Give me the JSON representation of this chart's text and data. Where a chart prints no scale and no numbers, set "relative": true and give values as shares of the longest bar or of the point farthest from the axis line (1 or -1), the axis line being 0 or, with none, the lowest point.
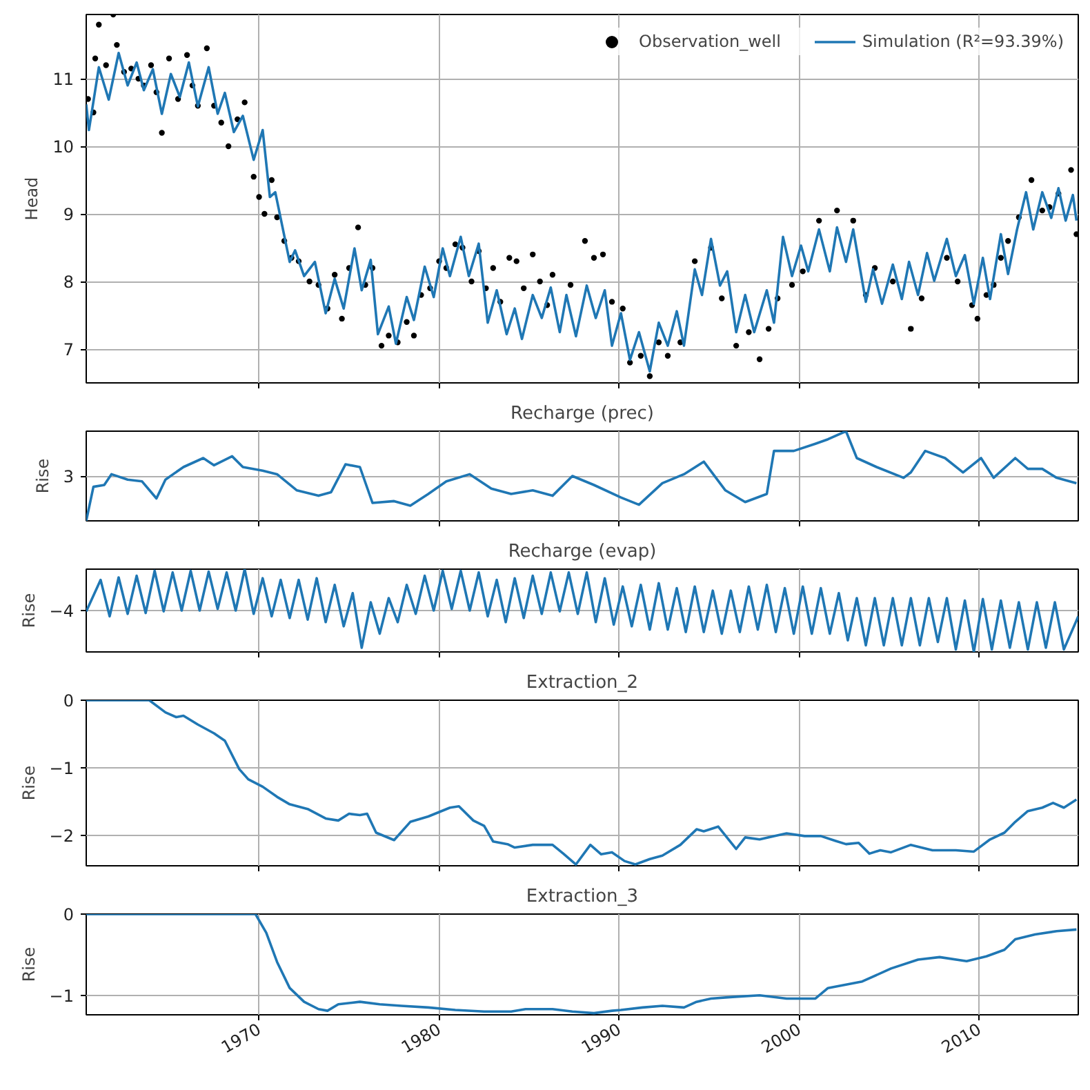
{
  "chart_data": [
    {
      "type": "line",
      "ylabel": "Head",
      "xlim": [
        1960.4,
        2015.5
      ],
      "xticks": [
        1970,
        1980,
        1990,
        2000,
        2010
      ],
      "ylim": [
        6.5,
        11.95
      ],
      "yticks": [
        7,
        8,
        9,
        10,
        11
      ],
      "tick_labels": "y",
      "grid": true,
      "legend": "top right",
      "series": [
        {
          "name": "Observation_well",
          "type": "scatter",
          "marker": "circle",
          "color": "#000000",
          "x": [
            1960.5,
            1960.8,
            1960.9,
            1961.1,
            1961.5,
            1961.9,
            1962.1,
            1962.5,
            1962.9,
            1963.3,
            1963.6,
            1964.0,
            1964.3,
            1964.6,
            1965.0,
            1965.5,
            1966.0,
            1966.3,
            1966.6,
            1967.1,
            1967.5,
            1967.9,
            1968.3,
            1968.8,
            1969.2,
            1969.7,
            1970.0,
            1970.3,
            1970.7,
            1971.0,
            1971.4,
            1971.8,
            1972.2,
            1972.8,
            1973.3,
            1973.8,
            1974.2,
            1974.6,
            1975.0,
            1975.5,
            1975.9,
            1976.3,
            1976.8,
            1977.2,
            1977.7,
            1978.2,
            1978.6,
            1979.0,
            1979.5,
            1980.0,
            1980.4,
            1980.9,
            1981.3,
            1981.8,
            1982.2,
            1982.6,
            1983.0,
            1983.4,
            1983.9,
            1984.3,
            1984.7,
            1985.2,
            1985.6,
            1986.0,
            1986.3,
            1987.3,
            1988.1,
            1988.6,
            1989.1,
            1989.6,
            1990.2,
            1990.6,
            1991.2,
            1991.7,
            1992.2,
            1992.7,
            1993.4,
            1994.2,
            1995.1,
            1995.7,
            1996.5,
            1997.2,
            1997.8,
            1998.3,
            1998.8,
            1999.6,
            2000.2,
            2001.1,
            2002.1,
            2003.0,
            2003.7,
            2004.2,
            2005.2,
            2006.2,
            2006.8,
            2008.2,
            2008.8,
            2009.6,
            2009.9,
            2010.4,
            2010.8,
            2011.2,
            2011.6,
            2012.2,
            2012.9,
            2013.5,
            2013.9,
            2014.4,
            2015.1,
            2015.4
          ],
          "values": [
            10.7,
            10.5,
            11.3,
            11.8,
            11.2,
            11.95,
            11.5,
            11.1,
            11.15,
            11.0,
            10.9,
            11.2,
            10.8,
            10.2,
            11.3,
            10.7,
            11.35,
            10.9,
            10.6,
            11.45,
            10.6,
            10.35,
            10.0,
            10.4,
            10.65,
            9.55,
            9.25,
            9.0,
            9.5,
            8.95,
            8.6,
            8.35,
            8.3,
            8.0,
            7.95,
            7.6,
            8.1,
            7.45,
            8.2,
            8.8,
            7.95,
            8.2,
            7.05,
            7.2,
            7.1,
            7.4,
            7.2,
            7.8,
            7.9,
            8.3,
            8.2,
            8.55,
            8.5,
            8.0,
            8.45,
            7.9,
            8.2,
            7.7,
            8.35,
            8.3,
            7.9,
            8.4,
            8.0,
            7.65,
            8.1,
            7.95,
            8.6,
            8.35,
            8.4,
            7.7,
            7.6,
            6.8,
            6.9,
            6.6,
            7.1,
            6.9,
            7.1,
            8.3,
            8.5,
            7.75,
            7.05,
            7.25,
            6.85,
            7.3,
            7.75,
            7.95,
            8.15,
            8.9,
            9.05,
            8.9,
            7.8,
            8.2,
            8.0,
            7.3,
            7.75,
            8.35,
            8.0,
            7.65,
            7.45,
            7.8,
            7.95,
            8.35,
            8.6,
            8.95,
            9.5,
            9.05,
            9.1,
            9.3,
            9.65,
            8.7
          ]
        },
        {
          "name": "Simulation (R²=93.39%)",
          "type": "line",
          "color": "#1f77b4",
          "x": [
            1960.4,
            1960.55,
            1961.1,
            1961.65,
            1962.2,
            1962.7,
            1963.2,
            1963.6,
            1964.1,
            1964.6,
            1965.1,
            1965.6,
            1966.1,
            1966.6,
            1967.2,
            1967.7,
            1968.1,
            1968.6,
            1969.1,
            1969.7,
            1970.2,
            1970.6,
            1970.9,
            1971.7,
            1972.0,
            1972.5,
            1973.1,
            1973.7,
            1974.2,
            1974.7,
            1975.3,
            1975.7,
            1976.2,
            1976.6,
            1977.2,
            1977.6,
            1978.2,
            1978.6,
            1979.2,
            1979.7,
            1980.2,
            1980.6,
            1981.2,
            1981.65,
            1982.2,
            1982.7,
            1983.2,
            1983.75,
            1984.2,
            1984.6,
            1985.2,
            1985.7,
            1986.2,
            1986.7,
            1987.07,
            1987.6,
            1988.2,
            1988.7,
            1989.2,
            1989.6,
            1990.1,
            1990.6,
            1991.1,
            1991.7,
            1992.2,
            1992.7,
            1993.2,
            1993.6,
            1994.2,
            1994.6,
            1995.1,
            1995.6,
            1996.0,
            1996.5,
            1997.0,
            1997.5,
            1998.2,
            1998.6,
            1999.1,
            1999.6,
            2000.1,
            2000.5,
            2001.1,
            2001.7,
            2002.1,
            2002.6,
            2003.0,
            2003.7,
            2004.1,
            2004.6,
            2005.2,
            2005.7,
            2006.1,
            2006.6,
            2007.1,
            2007.5,
            2008.2,
            2008.7,
            2009.2,
            2009.7,
            2010.2,
            2010.6,
            2011.2,
            2011.6,
            2012.1,
            2012.6,
            2013.0,
            2013.5,
            2014.0,
            2014.4,
            2014.8,
            2015.2,
            2015.4
          ],
          "values": [
            10.62,
            10.24,
            11.17,
            10.69,
            11.38,
            10.9,
            11.24,
            10.83,
            11.14,
            10.48,
            11.07,
            10.73,
            11.24,
            10.59,
            11.17,
            10.48,
            10.79,
            10.21,
            10.45,
            9.8,
            10.24,
            9.25,
            9.32,
            8.29,
            8.46,
            8.08,
            8.29,
            7.53,
            8.04,
            7.6,
            8.49,
            7.87,
            8.32,
            7.22,
            7.63,
            7.08,
            7.77,
            7.43,
            8.22,
            7.77,
            8.49,
            8.08,
            8.66,
            8.08,
            8.56,
            7.39,
            7.87,
            7.22,
            7.6,
            7.15,
            7.8,
            7.46,
            7.91,
            7.25,
            7.8,
            7.19,
            7.94,
            7.46,
            7.87,
            7.05,
            7.53,
            6.84,
            7.25,
            6.67,
            7.39,
            7.05,
            7.56,
            7.05,
            8.18,
            7.8,
            8.63,
            7.94,
            8.15,
            7.25,
            7.8,
            7.25,
            7.87,
            7.39,
            8.66,
            8.08,
            8.53,
            8.15,
            8.77,
            8.15,
            8.8,
            8.29,
            8.77,
            7.7,
            8.18,
            7.67,
            8.25,
            7.74,
            8.29,
            7.8,
            8.42,
            8.01,
            8.63,
            8.08,
            8.39,
            7.67,
            8.35,
            7.74,
            8.7,
            8.11,
            8.77,
            9.32,
            8.77,
            9.32,
            8.94,
            9.38,
            8.9,
            9.28,
            8.9
          ]
        }
      ]
    },
    {
      "type": "line",
      "title": "Recharge (prec)",
      "ylabel": "Rise",
      "relative": true,
      "annotations": [
        "3"
      ],
      "xlim": [
        1960.4,
        2015.5
      ],
      "xticks": [
        1970,
        1980,
        1990,
        2000,
        2010
      ],
      "tick_labels": "y",
      "grid": true,
      "series": [
        {
          "color": "#1f77b4",
          "x": [
            1960.4,
            1960.8,
            1961.4,
            1961.8,
            1962.7,
            1963.5,
            1964.3,
            1964.8,
            1965.8,
            1966.9,
            1967.5,
            1968.5,
            1969.1,
            1970.2,
            1971.0,
            1972.1,
            1973.3,
            1974.0,
            1974.8,
            1975.6,
            1976.3,
            1977.5,
            1978.4,
            1979.4,
            1980.4,
            1981.7,
            1982.9,
            1984.0,
            1985.2,
            1986.3,
            1987.4,
            1988.6,
            1990.1,
            1991.1,
            1992.4,
            1993.6,
            1994.7,
            1995.9,
            1997.0,
            1998.2,
            1998.6,
            1999.7,
            2000.9,
            2001.6,
            2002.6,
            2003.2,
            2004.3,
            2005.8,
            2006.2,
            2007.0,
            2008.1,
            2009.1,
            2010.1,
            2010.8,
            2012.0,
            2012.7,
            2013.5,
            2014.3,
            2015.4
          ],
          "values": [
            0,
            0.38,
            0.4,
            0.52,
            0.46,
            0.44,
            0.25,
            0.46,
            0.6,
            0.7,
            0.62,
            0.72,
            0.6,
            0.56,
            0.52,
            0.34,
            0.28,
            0.32,
            0.63,
            0.6,
            0.2,
            0.22,
            0.17,
            0.3,
            0.44,
            0.52,
            0.36,
            0.3,
            0.34,
            0.28,
            0.5,
            0.4,
            0.26,
            0.18,
            0.42,
            0.52,
            0.66,
            0.34,
            0.21,
            0.3,
            0.78,
            0.78,
            0.86,
            0.91,
            1.0,
            0.7,
            0.6,
            0.48,
            0.54,
            0.78,
            0.7,
            0.54,
            0.7,
            0.48,
            0.7,
            0.58,
            0.58,
            0.48,
            0.42
          ]
        }
      ]
    },
    {
      "type": "line",
      "title": "Recharge (evap)",
      "ylabel": "Rise",
      "relative": true,
      "annotations": [
        "−4"
      ],
      "xlim": [
        1960.4,
        2015.5
      ],
      "xticks": [
        1970,
        1980,
        1990,
        2000,
        2010
      ],
      "tick_labels": "y",
      "grid": true,
      "series": [
        {
          "color": "#1f77b4",
          "x": [
            1960.4,
            1961.2,
            1961.7,
            1962.2,
            1962.7,
            1963.2,
            1963.7,
            1964.2,
            1964.7,
            1965.2,
            1965.7,
            1966.2,
            1966.7,
            1967.2,
            1967.7,
            1968.2,
            1968.7,
            1969.2,
            1969.7,
            1970.2,
            1970.7,
            1971.2,
            1971.7,
            1972.2,
            1972.7,
            1973.2,
            1973.7,
            1974.2,
            1974.7,
            1975.2,
            1975.7,
            1976.2,
            1976.7,
            1977.2,
            1977.7,
            1978.2,
            1978.7,
            1979.2,
            1979.7,
            1980.2,
            1980.7,
            1981.2,
            1981.7,
            1982.2,
            1982.7,
            1983.2,
            1983.7,
            1984.2,
            1984.7,
            1985.2,
            1985.7,
            1986.2,
            1986.7,
            1987.2,
            1987.7,
            1988.2,
            1988.7,
            1989.2,
            1989.7,
            1990.2,
            1990.7,
            1991.2,
            1991.7,
            1992.2,
            1992.7,
            1993.2,
            1993.7,
            1994.2,
            1994.7,
            1995.2,
            1995.7,
            1996.2,
            1996.7,
            1997.2,
            1997.7,
            1998.2,
            1998.7,
            1999.2,
            1999.7,
            2000.2,
            2000.7,
            2001.2,
            2001.7,
            2002.2,
            2002.7,
            2003.2,
            2003.7,
            2004.2,
            2004.7,
            2005.2,
            2005.7,
            2006.2,
            2006.7,
            2007.2,
            2007.7,
            2008.2,
            2008.7,
            2009.2,
            2009.7,
            2010.2,
            2010.7,
            2011.2,
            2011.7,
            2012.2,
            2012.7,
            2013.2,
            2013.7,
            2014.2,
            2014.7,
            2015.5
          ],
          "values": [
            0.49,
            0.87,
            0.43,
            0.9,
            0.46,
            0.92,
            0.47,
            0.98,
            0.49,
            0.96,
            0.5,
            0.98,
            0.5,
            0.97,
            0.52,
            0.96,
            0.5,
            1.0,
            0.46,
            0.89,
            0.43,
            0.87,
            0.41,
            0.87,
            0.39,
            0.89,
            0.36,
            0.81,
            0.31,
            0.71,
            0.05,
            0.6,
            0.22,
            0.65,
            0.36,
            0.81,
            0.46,
            0.92,
            0.5,
            0.98,
            0.52,
            0.98,
            0.5,
            0.96,
            0.43,
            0.87,
            0.36,
            0.89,
            0.41,
            0.92,
            0.46,
            0.96,
            0.49,
            0.96,
            0.46,
            0.96,
            0.36,
            0.89,
            0.33,
            0.79,
            0.31,
            0.81,
            0.27,
            0.83,
            0.27,
            0.77,
            0.24,
            0.79,
            0.24,
            0.74,
            0.22,
            0.74,
            0.24,
            0.79,
            0.27,
            0.81,
            0.24,
            0.77,
            0.22,
            0.79,
            0.22,
            0.77,
            0.22,
            0.71,
            0.14,
            0.65,
            0.08,
            0.65,
            0.08,
            0.65,
            0.08,
            0.65,
            0.08,
            0.65,
            0.12,
            0.65,
            0.03,
            0.62,
            0,
            0.64,
            0.03,
            0.62,
            0.05,
            0.6,
            0.03,
            0.6,
            0.05,
            0.6,
            0.03,
            0.43
          ]
        }
      ]
    },
    {
      "type": "line",
      "title": "Extraction_2",
      "ylabel": "Rise",
      "xlim": [
        1960.4,
        2015.5
      ],
      "xticks": [
        1970,
        1980,
        1990,
        2000,
        2010
      ],
      "ylim": [
        -2.45,
        0
      ],
      "yticks": [
        {
          "value": 0,
          "label": "0"
        },
        {
          "value": -1,
          "label": "−1"
        },
        {
          "value": -2,
          "label": "−2"
        }
      ],
      "tick_labels": "y",
      "grid": true,
      "series": [
        {
          "color": "#1f77b4",
          "x": [
            1960.4,
            1963.9,
            1964.8,
            1965.4,
            1965.8,
            1966.6,
            1967.5,
            1968.1,
            1968.9,
            1969.4,
            1970.2,
            1971.0,
            1971.7,
            1972.7,
            1973.7,
            1974.4,
            1975.0,
            1975.6,
            1976.0,
            1976.5,
            1977.5,
            1978.4,
            1979.4,
            1980.6,
            1981.1,
            1981.9,
            1982.5,
            1983.0,
            1983.8,
            1984.2,
            1985.2,
            1986.3,
            1986.9,
            1987.6,
            1988.4,
            1989.0,
            1989.6,
            1990.3,
            1990.9,
            1991.7,
            1992.4,
            1993.4,
            1994.3,
            1994.7,
            1995.5,
            1996.5,
            1997.0,
            1997.8,
            1998.6,
            1999.3,
            2000.3,
            2001.2,
            2002.0,
            2002.6,
            2003.3,
            2003.9,
            2004.5,
            2005.1,
            2006.2,
            2007.4,
            2008.7,
            2009.7,
            2010.6,
            2011.4,
            2012.0,
            2012.7,
            2013.5,
            2014.1,
            2014.7,
            2015.4
          ],
          "values": [
            0,
            0,
            -0.18,
            -0.25,
            -0.23,
            -0.36,
            -0.49,
            -0.6,
            -1.02,
            -1.17,
            -1.28,
            -1.43,
            -1.54,
            -1.61,
            -1.75,
            -1.78,
            -1.68,
            -1.7,
            -1.68,
            -1.96,
            -2.07,
            -1.8,
            -1.72,
            -1.59,
            -1.57,
            -1.78,
            -1.86,
            -2.09,
            -2.13,
            -2.18,
            -2.14,
            -2.14,
            -2.27,
            -2.43,
            -2.14,
            -2.28,
            -2.25,
            -2.38,
            -2.43,
            -2.35,
            -2.3,
            -2.14,
            -1.91,
            -1.94,
            -1.87,
            -2.2,
            -2.03,
            -2.06,
            -2.01,
            -1.97,
            -2.01,
            -2.01,
            -2.08,
            -2.13,
            -2.11,
            -2.27,
            -2.22,
            -2.25,
            -2.14,
            -2.22,
            -2.22,
            -2.24,
            -2.06,
            -1.96,
            -1.8,
            -1.64,
            -1.59,
            -1.52,
            -1.59,
            -1.47
          ]
        }
      ]
    },
    {
      "type": "line",
      "title": "Extraction_3",
      "ylabel": "Rise",
      "xlim": [
        1960.4,
        2015.5
      ],
      "xticks": [
        1970,
        1980,
        1990,
        2000,
        2010
      ],
      "ylim": [
        -1.24,
        0
      ],
      "yticks": [
        {
          "value": 0,
          "label": "0"
        },
        {
          "value": -1,
          "label": "−1"
        }
      ],
      "grid": true,
      "series": [
        {
          "color": "#1f77b4",
          "x": [
            1960.4,
            1969.8,
            1970.4,
            1971.0,
            1971.7,
            1972.5,
            1973.3,
            1973.8,
            1974.4,
            1975.6,
            1976.7,
            1977.9,
            1979.4,
            1980.9,
            1982.5,
            1984.0,
            1984.8,
            1986.3,
            1987.4,
            1988.6,
            1989.6,
            1990.1,
            1991.3,
            1992.4,
            1993.6,
            1994.3,
            1995.1,
            1996.3,
            1997.8,
            1999.3,
            2000.9,
            2001.6,
            2003.5,
            2005.1,
            2006.6,
            2007.8,
            2009.3,
            2010.4,
            2011.4,
            2012.0,
            2013.1,
            2014.3,
            2015.4
          ],
          "values": [
            0,
            0,
            -0.23,
            -0.59,
            -0.91,
            -1.08,
            -1.17,
            -1.19,
            -1.11,
            -1.08,
            -1.11,
            -1.13,
            -1.15,
            -1.18,
            -1.2,
            -1.2,
            -1.17,
            -1.17,
            -1.2,
            -1.22,
            -1.19,
            -1.18,
            -1.15,
            -1.13,
            -1.15,
            -1.08,
            -1.04,
            -1.02,
            -1.0,
            -1.04,
            -1.04,
            -0.91,
            -0.83,
            -0.67,
            -0.56,
            -0.53,
            -0.58,
            -0.52,
            -0.44,
            -0.31,
            -0.25,
            -0.21,
            -0.19
          ]
        }
      ]
    }
  ]
}
